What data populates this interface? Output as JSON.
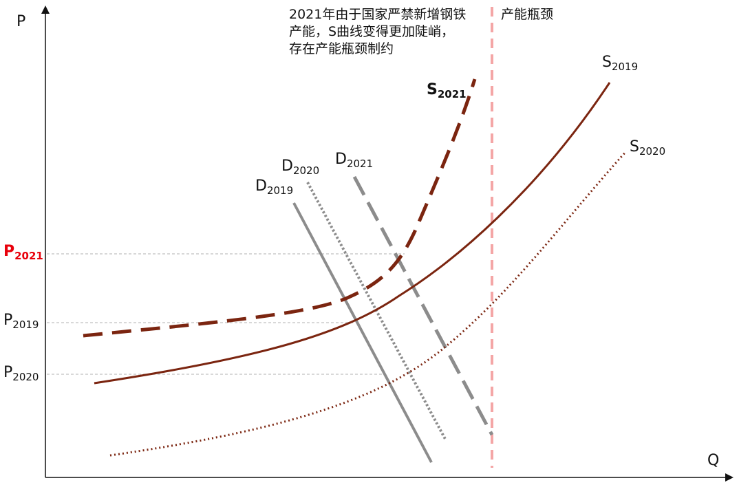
{
  "axes": {
    "y_label": "P",
    "x_label": "Q"
  },
  "price_labels": {
    "p2021": {
      "main": "P",
      "sub": "2021",
      "color": "#e8000b"
    },
    "p2019": {
      "main": "P",
      "sub": "2019"
    },
    "p2020": {
      "main": "P",
      "sub": "2020"
    }
  },
  "curve_labels": {
    "s2019": {
      "main": "S",
      "sub": "2019"
    },
    "s2020": {
      "main": "S",
      "sub": "2020"
    },
    "s2021": {
      "main": "S",
      "sub": "2021"
    },
    "d2019": {
      "main": "D",
      "sub": "2019"
    },
    "d2020": {
      "main": "D",
      "sub": "2020"
    },
    "d2021": {
      "main": "D",
      "sub": "2021"
    }
  },
  "annotation": {
    "lines": [
      "2021年由于国家严禁新增钢铁",
      "产能，S曲线变得更加陡峭，",
      "存在产能瓶颈制约"
    ]
  },
  "bottleneck_label": "产能瓶颈",
  "colors": {
    "supply": "#7b2510",
    "demand": "#8c8c8c",
    "bottleneck": "#f4a6a6",
    "guide": "#cccccc"
  }
}
